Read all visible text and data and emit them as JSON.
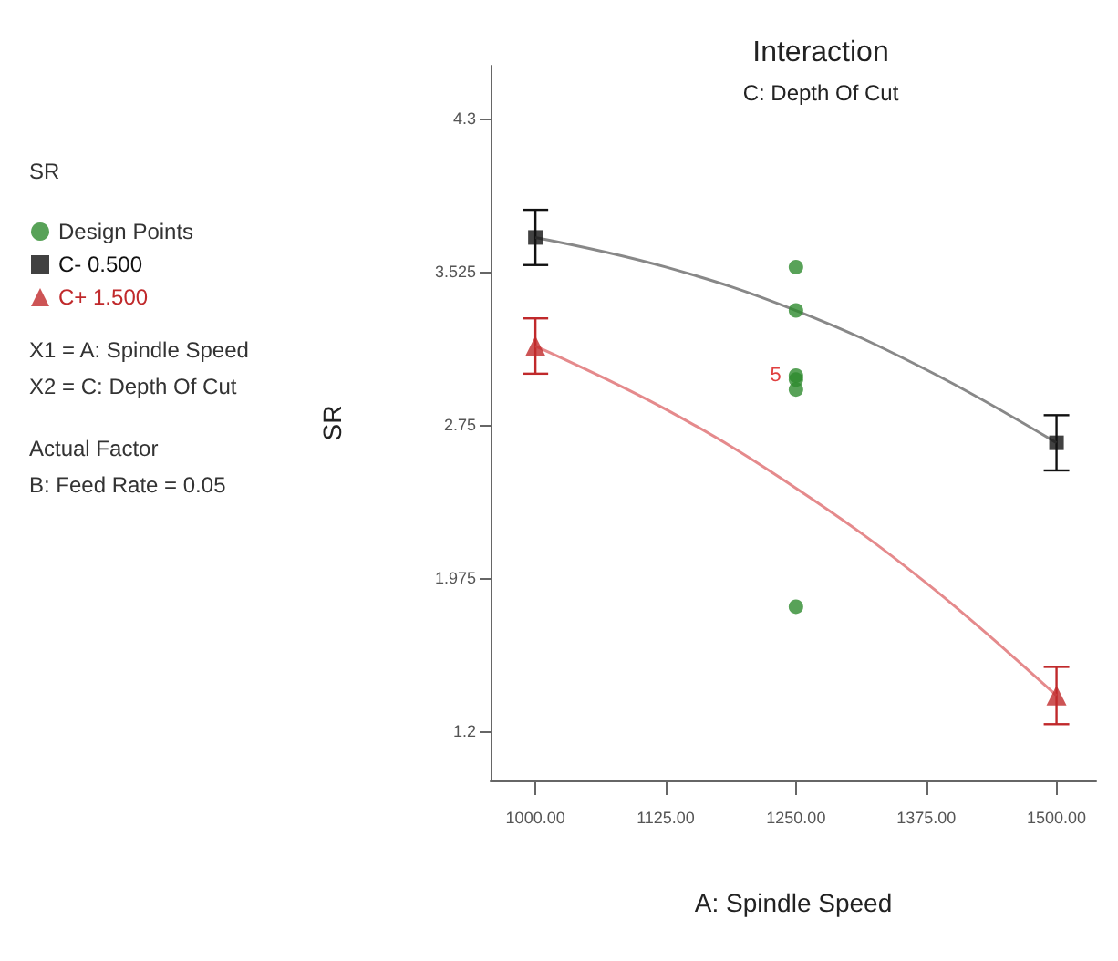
{
  "chart_data": {
    "type": "scatter",
    "title": "Interaction",
    "subtitle": "C: Depth Of Cut",
    "xlabel": "A: Spindle Speed",
    "ylabel": "SR",
    "annotations": [
      "SR",
      "X1 = A: Spindle Speed",
      "X2 = C: Depth Of Cut",
      "Actual Factor",
      "B: Feed Rate = 0.05",
      {
        "text": "5",
        "x": 1250,
        "y": 3.0
      }
    ],
    "legend": "left",
    "grid": false,
    "xlim": [
      957,
      1538
    ],
    "ylim": [
      0.95,
      4.57
    ],
    "xticks": [
      {
        "value": 1000,
        "label": "1000.00"
      },
      {
        "value": 1125,
        "label": "1125.00"
      },
      {
        "value": 1250,
        "label": "1250.00"
      },
      {
        "value": 1375,
        "label": "1375.00"
      },
      {
        "value": 1500,
        "label": "1500.00"
      }
    ],
    "yticks": [
      1.2,
      1.975,
      2.75,
      3.525,
      4.3
    ],
    "series": [
      {
        "name": "Design Points",
        "marker": "circle",
        "color": "#2e8b2e",
        "x": [
          1250,
          1250,
          1250,
          1250,
          1250,
          1250
        ],
        "values": [
          3.55,
          3.33,
          3.0,
          2.98,
          2.93,
          1.83
        ]
      },
      {
        "name": "C- 0.500",
        "marker": "square",
        "color": "#111111",
        "x": [
          1000,
          1500
        ],
        "values": [
          3.7,
          2.66
        ],
        "errors": [
          0.14,
          0.14
        ]
      },
      {
        "name": "C+ 1.500",
        "marker": "triangle",
        "color": "#c0292b",
        "x": [
          1000,
          1500
        ],
        "values": [
          3.15,
          1.38
        ],
        "errors": [
          0.14,
          0.145
        ]
      },
      {
        "type": "line",
        "marker": "none",
        "color": "#888888",
        "x": [
          1000,
          1125,
          1250,
          1375,
          1500
        ],
        "values": [
          3.7,
          3.55,
          3.33,
          3.03,
          2.66
        ]
      },
      {
        "type": "line",
        "marker": "none",
        "color": "#e58a8c",
        "x": [
          1000,
          1125,
          1250,
          1375,
          1500
        ],
        "values": [
          3.15,
          2.83,
          2.43,
          1.95,
          1.38
        ]
      }
    ]
  }
}
